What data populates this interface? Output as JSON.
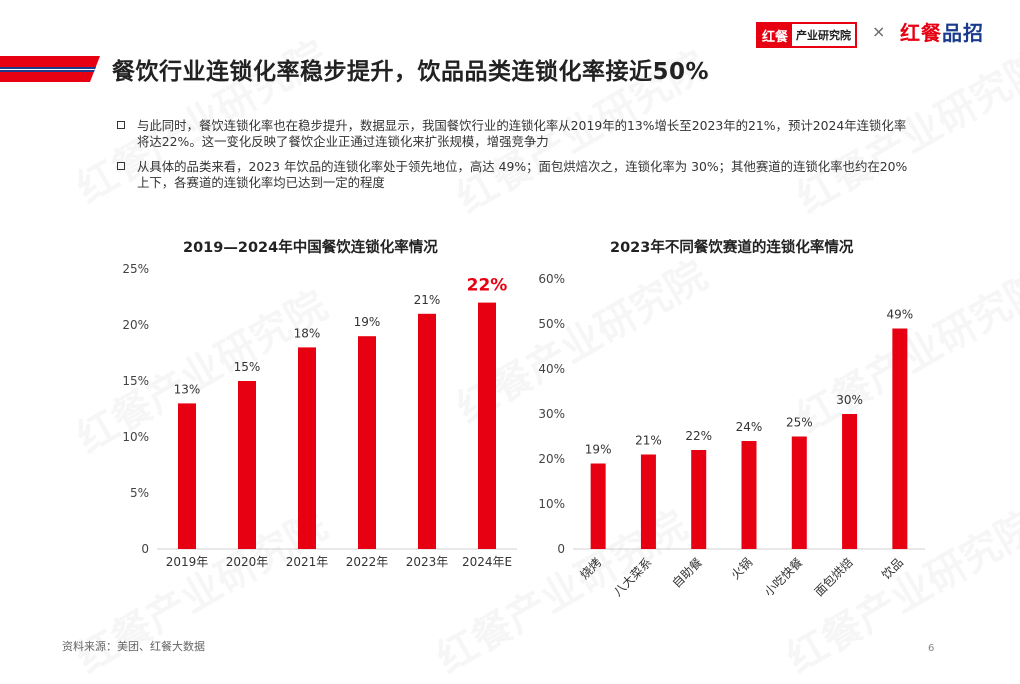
{
  "header": {
    "logo_mark": "红餐",
    "logo_text": "产业研究院",
    "separator": "×",
    "partner_logo_red": "红餐",
    "partner_logo_blue": "品招"
  },
  "title": "餐饮行业连锁化率稳步提升，饮品品类连锁化率接近50%",
  "bullets": [
    "与此同时，餐饮连锁化率也在稳步提升，数据显示，我国餐饮行业的连锁化率从2019年的13%增长至2023年的21%，预计2024年连锁化率将达22%。这一变化反映了餐饮企业正通过连锁化来扩张规模，增强竞争力",
    "从具体的品类来看，2023 年饮品的连锁化率处于领先地位，高达 49%；面包烘焙次之，连锁化率为 30%；其他赛道的连锁化率也约在20%上下，各赛道的连锁化率均已达到一定的程度"
  ],
  "chart_data": [
    {
      "type": "bar",
      "title": "2019—2024年中国餐饮连锁化率情况",
      "categories": [
        "2019年",
        "2020年",
        "2021年",
        "2022年",
        "2023年",
        "2024年E"
      ],
      "values": [
        13,
        15,
        18,
        19,
        21,
        22
      ],
      "value_labels": [
        "13%",
        "15%",
        "18%",
        "19%",
        "21%",
        "22%"
      ],
      "highlight_index": 5,
      "ylim": [
        0,
        25
      ],
      "yticks": [
        "0",
        "5%",
        "10%",
        "15%",
        "20%",
        "25%"
      ],
      "ytick_values": [
        0,
        5,
        10,
        15,
        20,
        25
      ],
      "grid": false,
      "bar_color": "#e60012",
      "highlight_color": "#e60012"
    },
    {
      "type": "bar",
      "title": "2023年不同餐饮赛道的连锁化率情况",
      "categories": [
        "烧烤",
        "八大菜系",
        "自助餐",
        "火锅",
        "小吃快餐",
        "面包烘焙",
        "饮品"
      ],
      "values": [
        19,
        21,
        22,
        24,
        25,
        30,
        49
      ],
      "value_labels": [
        "19%",
        "21%",
        "22%",
        "24%",
        "25%",
        "30%",
        "49%"
      ],
      "ylim": [
        0,
        60
      ],
      "yticks": [
        "0",
        "10%",
        "20%",
        "30%",
        "40%",
        "50%",
        "60%"
      ],
      "ytick_values": [
        0,
        10,
        20,
        30,
        40,
        50,
        60
      ],
      "grid": false,
      "bar_color": "#e60012"
    }
  ],
  "source": "资料来源：美团、红餐大数据",
  "page_number": "6",
  "colors": {
    "accent": "#e60012",
    "band_blue": "#1a3a8c",
    "text": "#333333"
  }
}
